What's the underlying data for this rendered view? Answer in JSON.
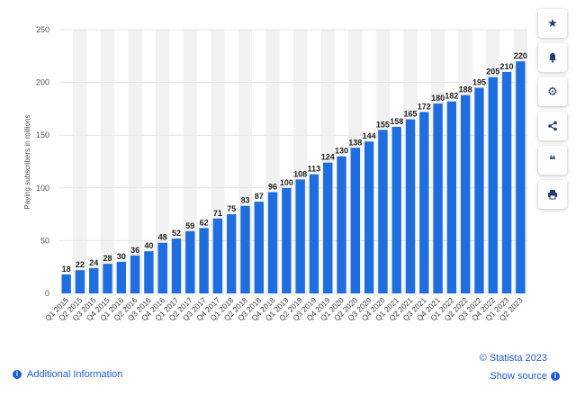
{
  "chart_data": {
    "type": "bar",
    "categories": [
      "Q1 2015",
      "Q2 2015",
      "Q3 2015",
      "Q4 2015",
      "Q1 2016",
      "Q2 2016",
      "Q3 2016",
      "Q4 2016",
      "Q1 2017",
      "Q2 2017",
      "Q3 2017",
      "Q4 2017",
      "Q1 2018",
      "Q2 2018",
      "Q3 2018",
      "Q4 2018",
      "Q1 2019",
      "Q2 2019",
      "Q3 2019",
      "Q4 2019",
      "Q1 2020",
      "Q2 2020",
      "Q3 2020",
      "Q4 2020",
      "Q1 2021",
      "Q2 2021",
      "Q3 2021",
      "Q4 2021",
      "Q1 2022",
      "Q2 2022",
      "Q3 2022",
      "Q4 2022",
      "Q1 2023",
      "Q2 2023"
    ],
    "values": [
      18,
      22,
      24,
      28,
      30,
      36,
      40,
      48,
      52,
      59,
      62,
      71,
      75,
      83,
      87,
      96,
      100,
      108,
      113,
      124,
      130,
      138,
      144,
      155,
      158,
      165,
      172,
      180,
      182,
      188,
      195,
      205,
      210,
      220
    ],
    "ylabel": "Paying subscribers in millions",
    "ylim": [
      0,
      250
    ],
    "yticks": [
      0,
      50,
      100,
      150,
      200,
      250
    ],
    "grid": true,
    "bar_color": "#1f6ee0",
    "band_color": "#f2f2f2"
  },
  "toolbar": {
    "icons": [
      "star-icon",
      "bell-icon",
      "gear-icon",
      "share-icon",
      "quote-icon",
      "print-icon"
    ]
  },
  "footer": {
    "copyright": "© Statista 2023",
    "show_source": "Show source",
    "additional_info": "Additional Information"
  }
}
